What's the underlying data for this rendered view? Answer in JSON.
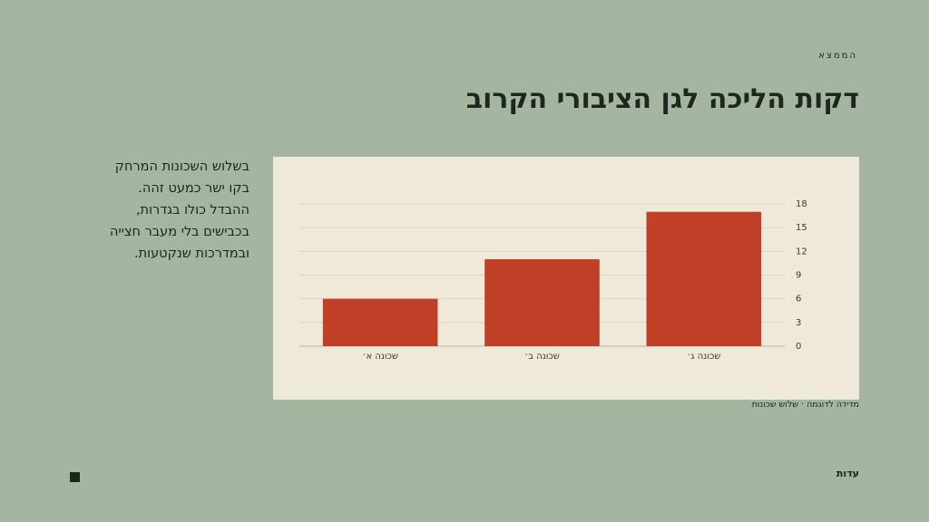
{
  "eyebrow": "הממצא",
  "paragraph": "בשלוש השכונות המרחק בקו ישר כמעט זהה. ההבדל כולו בגדרות, בכבישים בלי מעבר חצייה ובמדרכות שנקטעות.",
  "footer": "עדות",
  "chart_data": {
    "type": "bar",
    "title": "דקות הליכה לגן הציבורי הקרוב",
    "note": "מדידה לדוגמה · שלוש שכונות",
    "categories": [
      "שכונה א׳",
      "שכונה ב׳",
      "שכונה ג׳"
    ],
    "values": [
      6,
      11,
      17
    ],
    "color": "#bf4027",
    "ylim": [
      0,
      18
    ],
    "yticks": [
      0,
      3,
      6,
      9,
      12,
      15,
      18
    ],
    "grid": true
  }
}
